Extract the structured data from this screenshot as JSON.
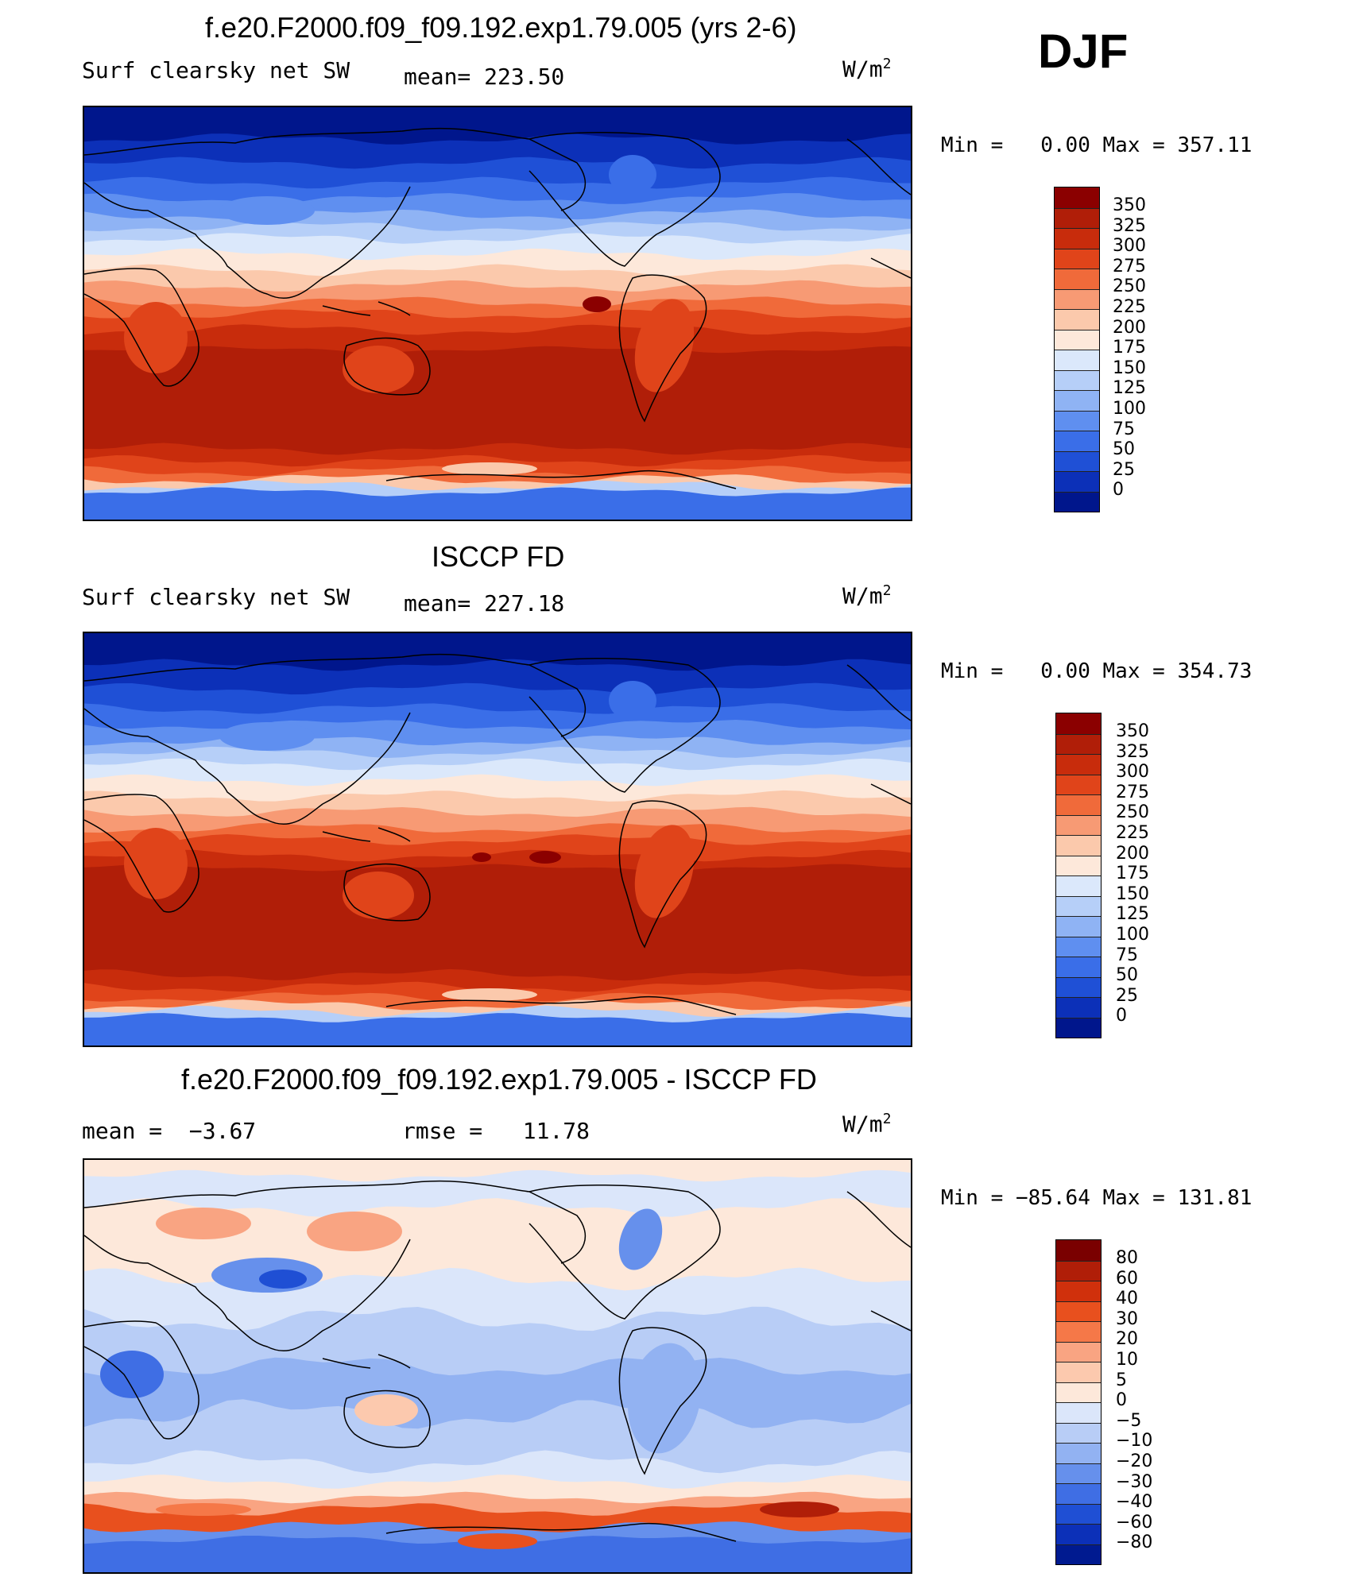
{
  "season": "DJF",
  "units_base": "W/m",
  "units_exp": "2",
  "panels": [
    {
      "title": "f.e20.F2000.f09_f09.192.exp1.79.005 (yrs 2-6)",
      "variable": "Surf clearsky net SW",
      "stat": "mean= 223.50",
      "min_label": "Min =",
      "min_value": "0.00",
      "max_label": "Max =",
      "max_value": "357.11",
      "legend": [
        "350",
        "325",
        "300",
        "275",
        "250",
        "225",
        "200",
        "175",
        "150",
        "125",
        "100",
        "75",
        "50",
        "25",
        "0"
      ]
    },
    {
      "title": "ISCCP FD",
      "variable": "Surf clearsky net SW",
      "stat": "mean= 227.18",
      "min_label": "Min =",
      "min_value": "0.00",
      "max_label": "Max =",
      "max_value": "354.73",
      "legend": [
        "350",
        "325",
        "300",
        "275",
        "250",
        "225",
        "200",
        "175",
        "150",
        "125",
        "100",
        "75",
        "50",
        "25",
        "0"
      ]
    },
    {
      "title": "f.e20.F2000.f09_f09.192.exp1.79.005 - ISCCP FD",
      "mean_label": "mean =",
      "mean_value": "−3.67",
      "rmse_label": "rmse =",
      "rmse_value": "11.78",
      "min_label": "Min =",
      "min_value": "−85.64",
      "max_label": "Max =",
      "max_value": "131.81",
      "legend": [
        "80",
        "60",
        "40",
        "30",
        "20",
        "10",
        "5",
        "0",
        "−5",
        "−10",
        "−20",
        "−30",
        "−40",
        "−60",
        "−80"
      ]
    }
  ],
  "colors": {
    "abs_scale": [
      "#8b0000",
      "#b01e08",
      "#c82c0c",
      "#e0441a",
      "#f06a3a",
      "#f79a74",
      "#fbc9ac",
      "#fde8da",
      "#dbe8fb",
      "#b6cff8",
      "#8fb3f4",
      "#5f8ff0",
      "#3a6ee8",
      "#1f50d6",
      "#0c30b8",
      "#00168c"
    ],
    "diff_scale": [
      "#7a0000",
      "#b01e08",
      "#d0300c",
      "#e8501e",
      "#f57848",
      "#f9a482",
      "#fcc9ae",
      "#fde8da",
      "#dbe6fa",
      "#b8cdf6",
      "#92b2f2",
      "#6690ec",
      "#3f6ee4",
      "#1f4fd4",
      "#0c30b8",
      "#001a90"
    ]
  }
}
